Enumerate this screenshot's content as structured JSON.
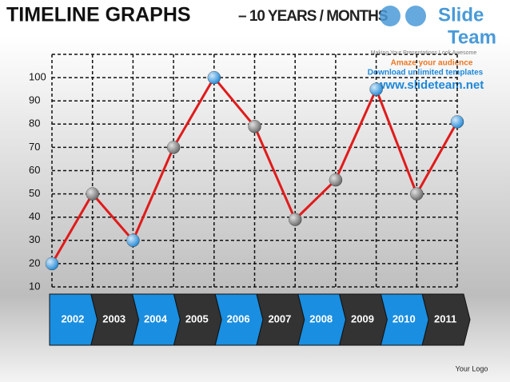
{
  "chart_data": {
    "type": "line",
    "title": "TIMELINE  GRAPHS",
    "subtitle": "– 10 YEARS / MONTHS",
    "categories": [
      null,
      null,
      null,
      null,
      null,
      null,
      null,
      null,
      null,
      null,
      null
    ],
    "series": [
      {
        "name": null,
        "color": "#e01b1b",
        "values": [
          20,
          50,
          30,
          70,
          100,
          79,
          39,
          56,
          95,
          50,
          81
        ],
        "point_colors": [
          "#1e88d8",
          "#666666",
          "#1e88d8",
          "#666666",
          "#1e88d8",
          "#666666",
          "#666666",
          "#666666",
          "#1e88d8",
          "#666666",
          "#1e88d8"
        ]
      }
    ],
    "ylim": [
      10,
      110
    ],
    "yticks": [
      10,
      20,
      30,
      40,
      50,
      60,
      70,
      80,
      90,
      100
    ],
    "grid": true,
    "timeline": [
      "2002",
      "2003",
      "2004",
      "2005",
      "2006",
      "2007",
      "2008",
      "2009",
      "2010",
      "2011"
    ],
    "timeline_colors": [
      "#1a8ee0",
      "#333333"
    ]
  },
  "branding": {
    "logo_top": "Slide",
    "logo_bottom": "Team",
    "tagline": "Making Your Presentations Look Awesome",
    "promo_1": "Amaze your audience",
    "promo_2": "Download unlimited templates",
    "promo_3": "www.slideteam.net",
    "your_logo": "Your Logo"
  }
}
